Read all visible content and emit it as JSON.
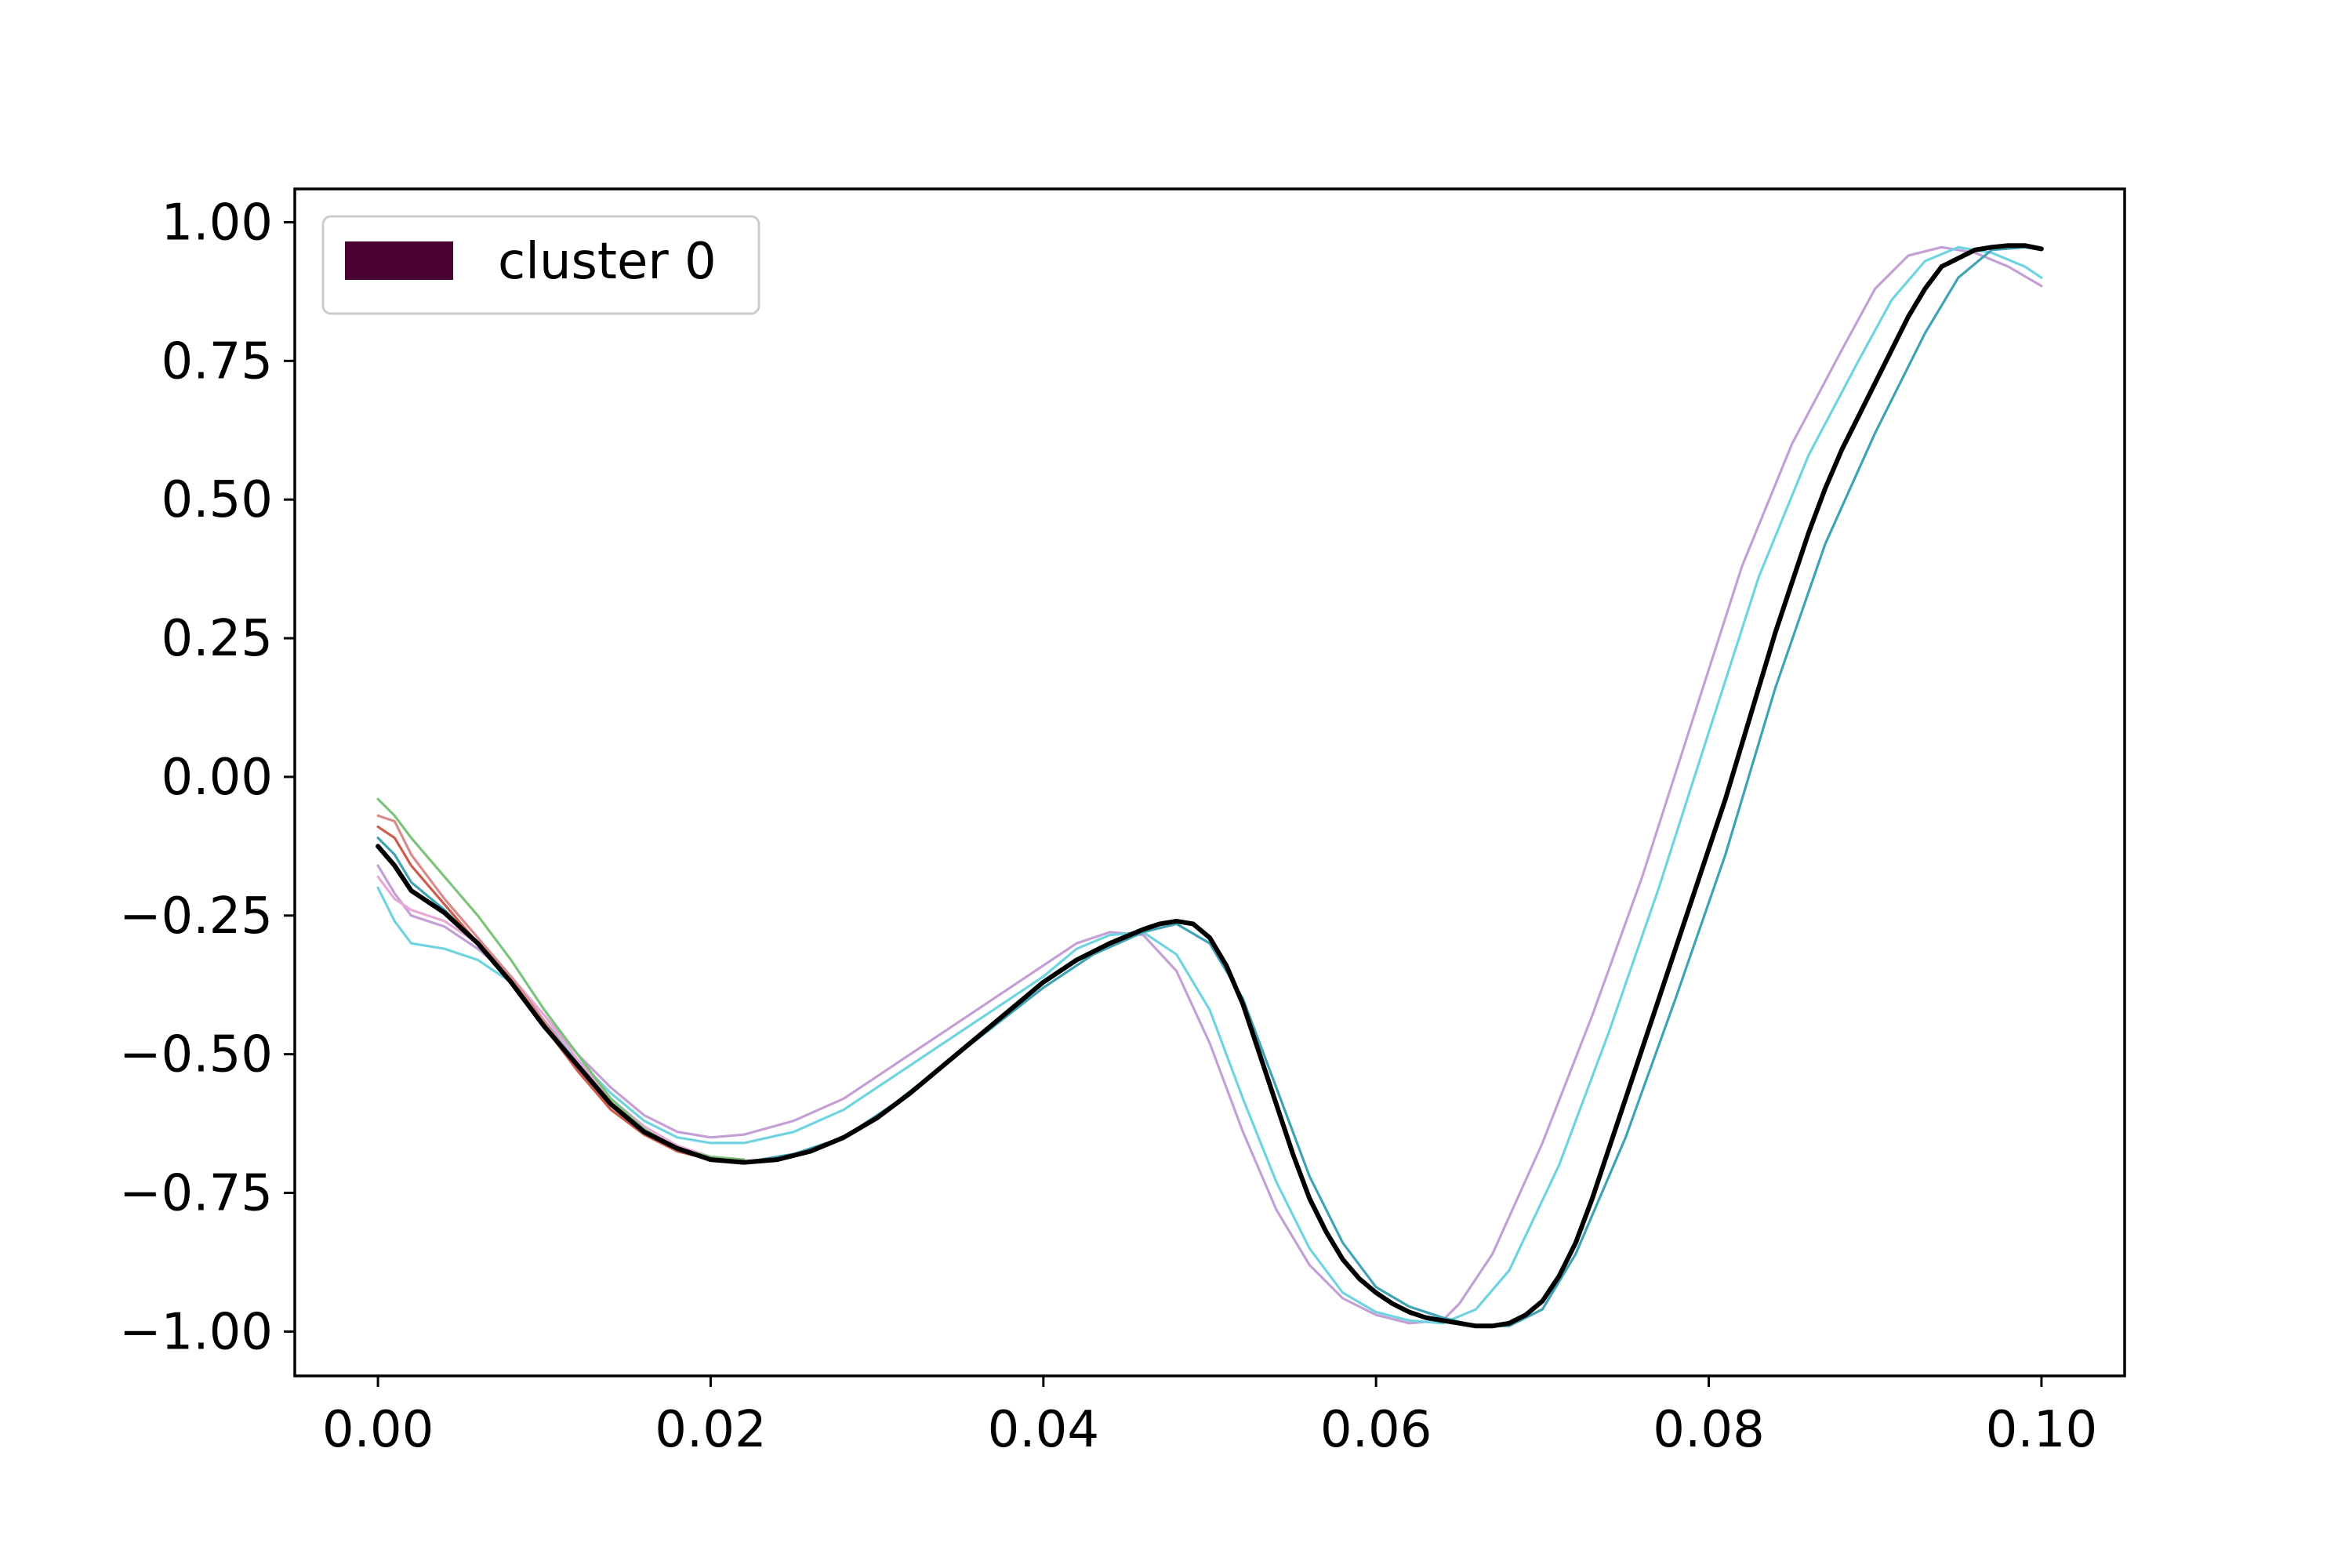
{
  "chart_data": {
    "type": "line",
    "title": "",
    "xlabel": "",
    "ylabel": "",
    "xlim": [
      -0.005,
      0.105
    ],
    "ylim": [
      -1.08,
      1.06
    ],
    "grid": false,
    "legend": {
      "placement": "top-left",
      "entries": [
        {
          "label": "cluster 0",
          "color": "#4a0134"
        }
      ]
    },
    "x_ticks": [
      {
        "value": 0.0,
        "label": "0.00"
      },
      {
        "value": 0.02,
        "label": "0.02"
      },
      {
        "value": 0.04,
        "label": "0.04"
      },
      {
        "value": 0.06,
        "label": "0.06"
      },
      {
        "value": 0.08,
        "label": "0.08"
      },
      {
        "value": 0.1,
        "label": "0.10"
      }
    ],
    "y_ticks": [
      {
        "value": 1.0,
        "label": "1.00"
      },
      {
        "value": 0.75,
        "label": "0.75"
      },
      {
        "value": 0.5,
        "label": "0.50"
      },
      {
        "value": 0.25,
        "label": "0.25"
      },
      {
        "value": 0.0,
        "label": "0.00"
      },
      {
        "value": -0.25,
        "label": "−0.25"
      },
      {
        "value": -0.5,
        "label": "−0.50"
      },
      {
        "value": -0.75,
        "label": "−0.75"
      },
      {
        "value": -1.0,
        "label": "−1.00"
      }
    ],
    "series": [
      {
        "color": "#c49fd6",
        "width": 3.2,
        "points": [
          [
            0.0,
            -0.16
          ],
          [
            0.001,
            -0.21
          ],
          [
            0.002,
            -0.25
          ],
          [
            0.004,
            -0.27
          ],
          [
            0.006,
            -0.31
          ],
          [
            0.008,
            -0.36
          ],
          [
            0.01,
            -0.43
          ],
          [
            0.012,
            -0.5
          ],
          [
            0.014,
            -0.56
          ],
          [
            0.016,
            -0.61
          ],
          [
            0.018,
            -0.64
          ],
          [
            0.02,
            -0.65
          ],
          [
            0.022,
            -0.645
          ],
          [
            0.025,
            -0.62
          ],
          [
            0.028,
            -0.58
          ],
          [
            0.031,
            -0.52
          ],
          [
            0.034,
            -0.46
          ],
          [
            0.037,
            -0.4
          ],
          [
            0.04,
            -0.34
          ],
          [
            0.042,
            -0.3
          ],
          [
            0.044,
            -0.28
          ],
          [
            0.046,
            -0.285
          ],
          [
            0.048,
            -0.35
          ],
          [
            0.05,
            -0.48
          ],
          [
            0.052,
            -0.64
          ],
          [
            0.054,
            -0.78
          ],
          [
            0.056,
            -0.88
          ],
          [
            0.058,
            -0.94
          ],
          [
            0.06,
            -0.97
          ],
          [
            0.062,
            -0.985
          ],
          [
            0.064,
            -0.98
          ],
          [
            0.065,
            -0.95
          ],
          [
            0.067,
            -0.86
          ],
          [
            0.07,
            -0.66
          ],
          [
            0.073,
            -0.43
          ],
          [
            0.076,
            -0.18
          ],
          [
            0.079,
            0.1
          ],
          [
            0.082,
            0.38
          ],
          [
            0.085,
            0.6
          ],
          [
            0.088,
            0.77
          ],
          [
            0.09,
            0.88
          ],
          [
            0.092,
            0.94
          ],
          [
            0.094,
            0.955
          ],
          [
            0.096,
            0.945
          ],
          [
            0.098,
            0.92
          ],
          [
            0.1,
            0.885
          ]
        ]
      },
      {
        "color": "#6fd3e0",
        "width": 3.2,
        "points": [
          [
            0.0,
            -0.2
          ],
          [
            0.001,
            -0.26
          ],
          [
            0.002,
            -0.3
          ],
          [
            0.004,
            -0.31
          ],
          [
            0.006,
            -0.33
          ],
          [
            0.008,
            -0.37
          ],
          [
            0.01,
            -0.44
          ],
          [
            0.012,
            -0.51
          ],
          [
            0.014,
            -0.57
          ],
          [
            0.016,
            -0.62
          ],
          [
            0.018,
            -0.65
          ],
          [
            0.02,
            -0.66
          ],
          [
            0.022,
            -0.66
          ],
          [
            0.025,
            -0.64
          ],
          [
            0.028,
            -0.6
          ],
          [
            0.031,
            -0.54
          ],
          [
            0.034,
            -0.48
          ],
          [
            0.037,
            -0.42
          ],
          [
            0.04,
            -0.36
          ],
          [
            0.042,
            -0.31
          ],
          [
            0.044,
            -0.285
          ],
          [
            0.046,
            -0.28
          ],
          [
            0.048,
            -0.32
          ],
          [
            0.05,
            -0.42
          ],
          [
            0.052,
            -0.58
          ],
          [
            0.054,
            -0.73
          ],
          [
            0.056,
            -0.85
          ],
          [
            0.058,
            -0.93
          ],
          [
            0.06,
            -0.965
          ],
          [
            0.062,
            -0.98
          ],
          [
            0.064,
            -0.985
          ],
          [
            0.066,
            -0.96
          ],
          [
            0.068,
            -0.89
          ],
          [
            0.071,
            -0.7
          ],
          [
            0.074,
            -0.46
          ],
          [
            0.077,
            -0.2
          ],
          [
            0.08,
            0.08
          ],
          [
            0.083,
            0.36
          ],
          [
            0.086,
            0.58
          ],
          [
            0.089,
            0.75
          ],
          [
            0.091,
            0.86
          ],
          [
            0.093,
            0.93
          ],
          [
            0.095,
            0.955
          ],
          [
            0.097,
            0.945
          ],
          [
            0.099,
            0.92
          ],
          [
            0.1,
            0.9
          ]
        ]
      },
      {
        "color": "#e8a9d8",
        "width": 3.2,
        "points": [
          [
            0.0,
            -0.18
          ],
          [
            0.001,
            -0.22
          ],
          [
            0.002,
            -0.24
          ],
          [
            0.004,
            -0.26
          ],
          [
            0.006,
            -0.3
          ],
          [
            0.008,
            -0.36
          ],
          [
            0.01,
            -0.43
          ],
          [
            0.012,
            -0.51
          ],
          [
            0.014,
            -0.58
          ],
          [
            0.016,
            -0.63
          ],
          [
            0.018,
            -0.665
          ],
          [
            0.02,
            -0.685
          ],
          [
            0.022,
            -0.69
          ]
        ]
      },
      {
        "color": "#d98b8b",
        "width": 3.2,
        "points": [
          [
            0.0,
            -0.07
          ],
          [
            0.001,
            -0.08
          ],
          [
            0.002,
            -0.14
          ],
          [
            0.004,
            -0.22
          ],
          [
            0.006,
            -0.29
          ],
          [
            0.008,
            -0.36
          ],
          [
            0.01,
            -0.44
          ],
          [
            0.012,
            -0.52
          ],
          [
            0.014,
            -0.59
          ],
          [
            0.016,
            -0.64
          ],
          [
            0.018,
            -0.675
          ],
          [
            0.02,
            -0.69
          ],
          [
            0.022,
            -0.695
          ]
        ]
      },
      {
        "color": "#cd5c4c",
        "width": 3.2,
        "points": [
          [
            0.0,
            -0.09
          ],
          [
            0.001,
            -0.11
          ],
          [
            0.002,
            -0.16
          ],
          [
            0.004,
            -0.23
          ],
          [
            0.006,
            -0.3
          ],
          [
            0.008,
            -0.37
          ],
          [
            0.01,
            -0.45
          ],
          [
            0.012,
            -0.53
          ],
          [
            0.014,
            -0.6
          ],
          [
            0.016,
            -0.645
          ],
          [
            0.018,
            -0.675
          ],
          [
            0.02,
            -0.69
          ],
          [
            0.022,
            -0.695
          ]
        ]
      },
      {
        "color": "#7cc47c",
        "width": 3.2,
        "points": [
          [
            0.0,
            -0.04
          ],
          [
            0.001,
            -0.07
          ],
          [
            0.002,
            -0.11
          ],
          [
            0.004,
            -0.18
          ],
          [
            0.006,
            -0.25
          ],
          [
            0.008,
            -0.33
          ],
          [
            0.01,
            -0.42
          ],
          [
            0.012,
            -0.5
          ],
          [
            0.014,
            -0.58
          ],
          [
            0.016,
            -0.635
          ],
          [
            0.018,
            -0.67
          ],
          [
            0.02,
            -0.685
          ],
          [
            0.022,
            -0.69
          ]
        ]
      },
      {
        "color": "#3fa3b5",
        "width": 3.2,
        "points": [
          [
            0.0,
            -0.11
          ],
          [
            0.001,
            -0.14
          ],
          [
            0.002,
            -0.19
          ],
          [
            0.004,
            -0.24
          ],
          [
            0.006,
            -0.3
          ],
          [
            0.008,
            -0.37
          ],
          [
            0.01,
            -0.45
          ],
          [
            0.012,
            -0.52
          ],
          [
            0.014,
            -0.59
          ],
          [
            0.016,
            -0.64
          ],
          [
            0.018,
            -0.67
          ],
          [
            0.02,
            -0.69
          ],
          [
            0.022,
            -0.695
          ],
          [
            0.025,
            -0.68
          ],
          [
            0.028,
            -0.65
          ],
          [
            0.031,
            -0.59
          ],
          [
            0.034,
            -0.52
          ],
          [
            0.037,
            -0.45
          ],
          [
            0.04,
            -0.38
          ],
          [
            0.043,
            -0.32
          ],
          [
            0.046,
            -0.28
          ],
          [
            0.048,
            -0.265
          ],
          [
            0.05,
            -0.3
          ],
          [
            0.052,
            -0.4
          ],
          [
            0.054,
            -0.56
          ],
          [
            0.056,
            -0.72
          ],
          [
            0.058,
            -0.84
          ],
          [
            0.06,
            -0.92
          ],
          [
            0.062,
            -0.955
          ],
          [
            0.064,
            -0.975
          ],
          [
            0.066,
            -0.99
          ],
          [
            0.068,
            -0.99
          ],
          [
            0.07,
            -0.96
          ],
          [
            0.072,
            -0.86
          ],
          [
            0.075,
            -0.65
          ],
          [
            0.078,
            -0.4
          ],
          [
            0.081,
            -0.14
          ],
          [
            0.084,
            0.16
          ],
          [
            0.087,
            0.42
          ],
          [
            0.09,
            0.62
          ],
          [
            0.093,
            0.8
          ],
          [
            0.095,
            0.9
          ],
          [
            0.097,
            0.95
          ],
          [
            0.099,
            0.955
          ],
          [
            0.1,
            0.95
          ]
        ]
      },
      {
        "color": "#000000",
        "width": 6,
        "points": [
          [
            0.0,
            -0.125
          ],
          [
            0.001,
            -0.16
          ],
          [
            0.002,
            -0.205
          ],
          [
            0.003,
            -0.225
          ],
          [
            0.004,
            -0.245
          ],
          [
            0.006,
            -0.3
          ],
          [
            0.008,
            -0.37
          ],
          [
            0.01,
            -0.45
          ],
          [
            0.012,
            -0.52
          ],
          [
            0.014,
            -0.59
          ],
          [
            0.016,
            -0.64
          ],
          [
            0.018,
            -0.67
          ],
          [
            0.02,
            -0.69
          ],
          [
            0.022,
            -0.695
          ],
          [
            0.024,
            -0.69
          ],
          [
            0.026,
            -0.675
          ],
          [
            0.028,
            -0.65
          ],
          [
            0.03,
            -0.615
          ],
          [
            0.032,
            -0.57
          ],
          [
            0.034,
            -0.52
          ],
          [
            0.036,
            -0.47
          ],
          [
            0.038,
            -0.42
          ],
          [
            0.04,
            -0.37
          ],
          [
            0.042,
            -0.33
          ],
          [
            0.044,
            -0.3
          ],
          [
            0.046,
            -0.275
          ],
          [
            0.047,
            -0.265
          ],
          [
            0.048,
            -0.26
          ],
          [
            0.049,
            -0.265
          ],
          [
            0.05,
            -0.29
          ],
          [
            0.051,
            -0.34
          ],
          [
            0.052,
            -0.41
          ],
          [
            0.053,
            -0.5
          ],
          [
            0.054,
            -0.59
          ],
          [
            0.055,
            -0.68
          ],
          [
            0.056,
            -0.76
          ],
          [
            0.057,
            -0.82
          ],
          [
            0.058,
            -0.87
          ],
          [
            0.059,
            -0.905
          ],
          [
            0.06,
            -0.93
          ],
          [
            0.061,
            -0.95
          ],
          [
            0.062,
            -0.965
          ],
          [
            0.063,
            -0.975
          ],
          [
            0.064,
            -0.98
          ],
          [
            0.065,
            -0.985
          ],
          [
            0.066,
            -0.99
          ],
          [
            0.067,
            -0.99
          ],
          [
            0.068,
            -0.985
          ],
          [
            0.069,
            -0.97
          ],
          [
            0.07,
            -0.945
          ],
          [
            0.071,
            -0.9
          ],
          [
            0.072,
            -0.84
          ],
          [
            0.073,
            -0.76
          ],
          [
            0.074,
            -0.67
          ],
          [
            0.075,
            -0.58
          ],
          [
            0.076,
            -0.49
          ],
          [
            0.077,
            -0.4
          ],
          [
            0.078,
            -0.31
          ],
          [
            0.079,
            -0.22
          ],
          [
            0.08,
            -0.13
          ],
          [
            0.081,
            -0.04
          ],
          [
            0.082,
            0.06
          ],
          [
            0.083,
            0.16
          ],
          [
            0.084,
            0.26
          ],
          [
            0.085,
            0.35
          ],
          [
            0.086,
            0.44
          ],
          [
            0.087,
            0.52
          ],
          [
            0.088,
            0.59
          ],
          [
            0.089,
            0.65
          ],
          [
            0.09,
            0.71
          ],
          [
            0.091,
            0.77
          ],
          [
            0.092,
            0.83
          ],
          [
            0.093,
            0.88
          ],
          [
            0.094,
            0.92
          ],
          [
            0.095,
            0.935
          ],
          [
            0.096,
            0.95
          ],
          [
            0.097,
            0.955
          ],
          [
            0.098,
            0.958
          ],
          [
            0.099,
            0.958
          ],
          [
            0.1,
            0.952
          ]
        ]
      }
    ]
  }
}
